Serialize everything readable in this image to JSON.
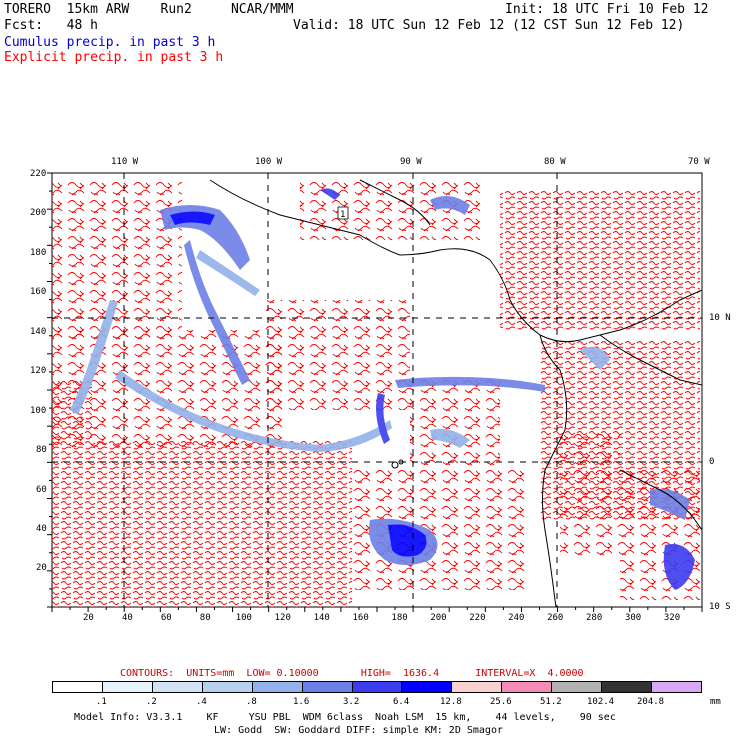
{
  "header": {
    "line1_left": "TORERO  15km ARW    Run2     NCAR/MMM",
    "line1_right": "Init: 18 UTC Fri 10 Feb 12",
    "line2_left": "Fcst:   48 h",
    "line2_right": "Valid: 18 UTC Sun 12 Feb 12 (12 CST Sun 12 Feb 12)",
    "legend_cumulus": "Cumulus precip. in past 3 h",
    "legend_explicit": "Explicit precip. in past 3 h",
    "cumulus_color": "#0000cc",
    "explicit_color": "#ff0000"
  },
  "map": {
    "top_lon_labels": [
      "110 W",
      "100 W",
      "90 W",
      "80 W",
      "70 W"
    ],
    "right_lat_labels": [
      "10 N",
      "0",
      "10 S"
    ],
    "y_ticks": [
      "220",
      "200",
      "180",
      "160",
      "140",
      "120",
      "100",
      "80",
      "60",
      "40",
      "20"
    ],
    "x_ticks": [
      "20",
      "40",
      "60",
      "80",
      "100",
      "120",
      "140",
      "160",
      "180",
      "200",
      "220",
      "240",
      "260",
      "280",
      "300",
      "320"
    ],
    "station_markers": [
      "1",
      "1"
    ]
  },
  "contour_info": "CONTOURS:  UNITS=mm  LOW= 0.10000       HIGH=  1636.4      INTERVAL=X  4.0000",
  "colorbar": {
    "values": [
      ".1",
      ".2",
      ".4",
      ".8",
      "1.6",
      "3.2",
      "6.4",
      "12.8",
      "25.6",
      "51.2",
      "102.4",
      "204.8"
    ],
    "unit": "mm",
    "colors": [
      "#ffffff",
      "#e8f2fb",
      "#d2e3f7",
      "#b6d0f0",
      "#93b2ea",
      "#6c7fe6",
      "#3b3bf0",
      "#0000ff",
      "#f8d2d2",
      "#f48bb8",
      "#b2b2b2",
      "#333333",
      "#d9a8f5"
    ]
  },
  "footer": {
    "line1": "Model Info: V3.3.1    KF     YSU PBL  WDM 6class  Noah LSM  15 km,    44 levels,    90 sec",
    "line2": "LW: Godd  SW: Goddard DIFF: simple KM: 2D Smagor"
  }
}
